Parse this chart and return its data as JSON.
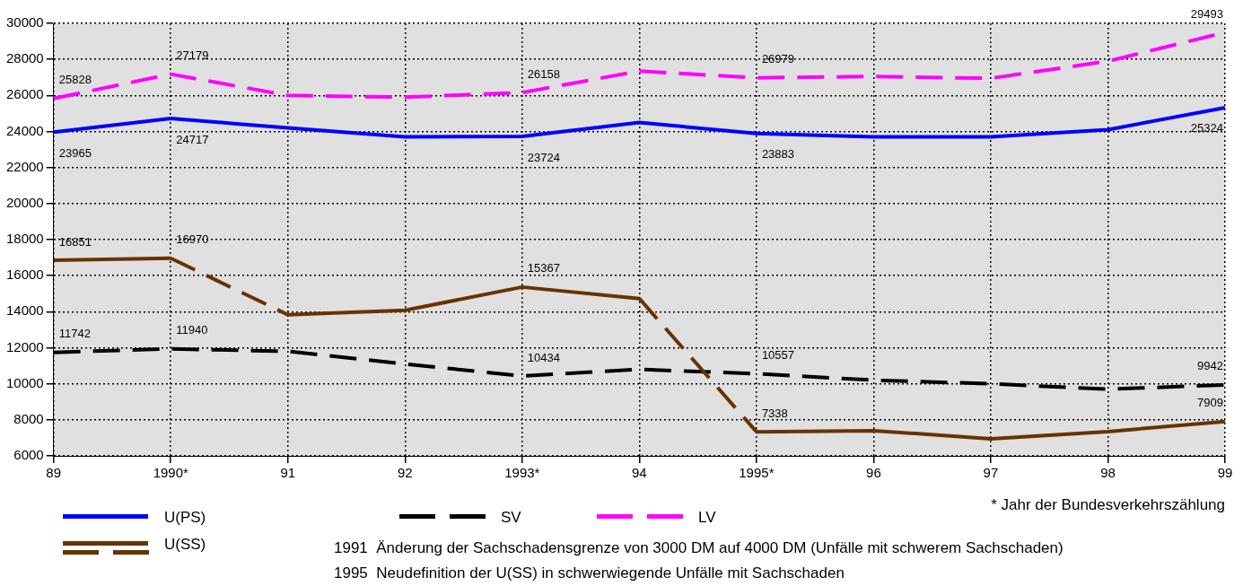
{
  "chart_data": {
    "type": "line",
    "categories": [
      "89",
      "1990*",
      "91",
      "92",
      "1993*",
      "94",
      "1995*",
      "96",
      "97",
      "98",
      "99"
    ],
    "ylim": [
      6000,
      30000
    ],
    "yticks": [
      6000,
      8000,
      10000,
      12000,
      14000,
      16000,
      18000,
      20000,
      22000,
      24000,
      26000,
      28000,
      30000
    ],
    "grid": true,
    "legend": "bottom left",
    "marker": "none",
    "series": [
      {
        "name": "U(PS)",
        "color": "#0000ff",
        "line_style": "solid",
        "values": [
          23965,
          24717,
          24200,
          23700,
          23724,
          24500,
          23883,
          23700,
          23700,
          24100,
          25324
        ],
        "value_labels": [
          "23965",
          "24717",
          null,
          null,
          "23724",
          null,
          "23883",
          null,
          null,
          null,
          "25324"
        ]
      },
      {
        "name": "U(SS)",
        "color": "#663300",
        "line_style": "solid",
        "values": [
          16851,
          16970,
          null,
          null,
          null,
          null,
          7338,
          7400,
          6950,
          7350,
          7909
        ],
        "value_labels": [
          "16851",
          "16970",
          null,
          null,
          null,
          null,
          "7338",
          null,
          null,
          null,
          "7909"
        ]
      },
      {
        "color": "#663300",
        "line_style": "solid",
        "values": [
          null,
          null,
          13830,
          14080,
          15367,
          14730,
          null,
          null,
          null,
          null,
          null
        ],
        "value_labels": [
          null,
          null,
          null,
          null,
          "15367",
          null,
          null,
          null,
          null,
          null,
          null
        ]
      },
      {
        "color": "#663300",
        "line_style": "dashed",
        "values": [
          null,
          16970,
          13830,
          null,
          null,
          14730,
          7338,
          null,
          null,
          null,
          null
        ]
      },
      {
        "name": "SV",
        "color": "#000000",
        "line_style": "dashed",
        "values": [
          11742,
          11940,
          11800,
          11100,
          10434,
          10800,
          10557,
          10200,
          10000,
          9700,
          9942
        ],
        "value_labels": [
          "11742",
          "11940",
          null,
          null,
          "10434",
          null,
          "10557",
          null,
          null,
          null,
          "9942"
        ]
      },
      {
        "name": "LV",
        "color": "#ff00ff",
        "line_style": "dashed",
        "values": [
          25828,
          27179,
          26000,
          25900,
          26158,
          27350,
          26979,
          27050,
          26950,
          27900,
          29493
        ],
        "value_labels": [
          "25828",
          "27179",
          null,
          null,
          "26158",
          null,
          "26979",
          null,
          null,
          null,
          "29493"
        ]
      }
    ],
    "annotations": [
      "* Jahr der Bundesverkehrszählung",
      "1991  Änderung der Sachschadensgrenze von 3000 DM auf 4000 DM (Unfälle mit schwerem Sachschaden)",
      "1995  Neudefinition der U(SS) in schwerwiegende Unfälle mit Sachschaden"
    ]
  }
}
